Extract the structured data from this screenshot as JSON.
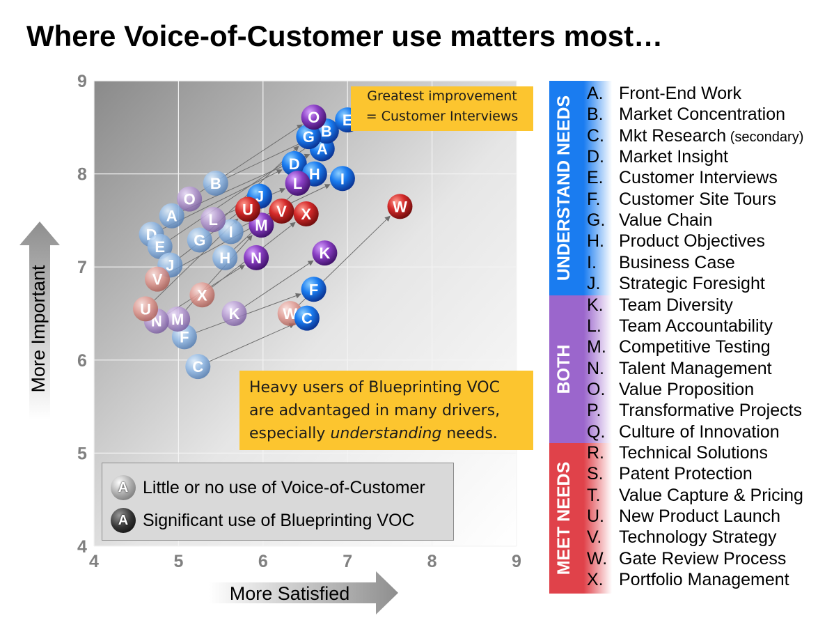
{
  "title": "Where Voice-of-Customer use matters most…",
  "chart_data": {
    "type": "scatter",
    "xlabel": "More Satisfied",
    "ylabel": "More Important",
    "xlim": [
      4,
      9
    ],
    "ylim": [
      4,
      9
    ],
    "x_ticks": [
      "4",
      "5",
      "6",
      "7",
      "8",
      "9"
    ],
    "y_ticks": [
      "4",
      "5",
      "6",
      "7",
      "8",
      "9"
    ],
    "grid": true,
    "series": [
      {
        "name": "Little or no use of Voice-of-Customer",
        "points": [
          {
            "label": "A",
            "x": 4.92,
            "y": 7.55
          },
          {
            "label": "B",
            "x": 5.44,
            "y": 7.9
          },
          {
            "label": "C",
            "x": 5.23,
            "y": 5.93
          },
          {
            "label": "D",
            "x": 4.68,
            "y": 7.35
          },
          {
            "label": "E",
            "x": 4.78,
            "y": 7.22
          },
          {
            "label": "F",
            "x": 5.07,
            "y": 6.25
          },
          {
            "label": "G",
            "x": 5.25,
            "y": 7.29
          },
          {
            "label": "H",
            "x": 5.55,
            "y": 7.1
          },
          {
            "label": "I",
            "x": 5.62,
            "y": 7.38
          },
          {
            "label": "J",
            "x": 4.9,
            "y": 7.02
          },
          {
            "label": "K",
            "x": 5.66,
            "y": 6.5
          },
          {
            "label": "L",
            "x": 5.41,
            "y": 7.51
          },
          {
            "label": "M",
            "x": 4.99,
            "y": 6.44
          },
          {
            "label": "N",
            "x": 4.74,
            "y": 6.42
          },
          {
            "label": "O",
            "x": 5.13,
            "y": 7.73
          },
          {
            "label": "U",
            "x": 4.61,
            "y": 6.55
          },
          {
            "label": "V",
            "x": 4.75,
            "y": 6.87
          },
          {
            "label": "W",
            "x": 6.32,
            "y": 6.5
          },
          {
            "label": "X",
            "x": 5.28,
            "y": 6.7
          }
        ]
      },
      {
        "name": "Significant use of Blueprinting VOC",
        "points": [
          {
            "label": "A",
            "x": 6.7,
            "y": 8.27
          },
          {
            "label": "B",
            "x": 6.75,
            "y": 8.46
          },
          {
            "label": "C",
            "x": 6.52,
            "y": 6.45
          },
          {
            "label": "D",
            "x": 6.37,
            "y": 8.11
          },
          {
            "label": "E",
            "x": 7.0,
            "y": 8.58
          },
          {
            "label": "F",
            "x": 6.6,
            "y": 6.76
          },
          {
            "label": "G",
            "x": 6.54,
            "y": 8.4
          },
          {
            "label": "H",
            "x": 6.61,
            "y": 8.0
          },
          {
            "label": "I",
            "x": 6.94,
            "y": 7.95
          },
          {
            "label": "J",
            "x": 5.96,
            "y": 7.76
          },
          {
            "label": "K",
            "x": 6.73,
            "y": 7.15
          },
          {
            "label": "L",
            "x": 6.41,
            "y": 7.9
          },
          {
            "label": "M",
            "x": 5.98,
            "y": 7.45
          },
          {
            "label": "N",
            "x": 5.92,
            "y": 7.1
          },
          {
            "label": "O",
            "x": 6.6,
            "y": 8.61
          },
          {
            "label": "U",
            "x": 5.82,
            "y": 7.62
          },
          {
            "label": "V",
            "x": 6.22,
            "y": 7.6
          },
          {
            "label": "W",
            "x": 7.62,
            "y": 7.65
          },
          {
            "label": "X",
            "x": 6.51,
            "y": 7.57
          }
        ]
      }
    ],
    "legend_position": "bottom-left"
  },
  "callouts": {
    "top": [
      "Greatest improvement",
      "= Customer Interviews"
    ],
    "bottom_line1": "Heavy users of Blueprinting VOC",
    "bottom_line2": "are advantaged in many drivers,",
    "bottom_line3_pre": "especially ",
    "bottom_line3_em": "understanding",
    "bottom_line3_post": " needs."
  },
  "legend": {
    "marker_letter": "A",
    "low_label": "Little or no use of Voice-of-Customer",
    "high_label": "Significant use of Blueprinting VOC"
  },
  "groups": [
    {
      "label": "UNDERSTAND NEEDS",
      "color": "#1a7cf0",
      "letters": [
        "A",
        "B",
        "C",
        "D",
        "E",
        "F",
        "G",
        "H",
        "I",
        "J"
      ]
    },
    {
      "label": "BOTH",
      "color": "#9b66cc",
      "letters": [
        "K",
        "L",
        "M",
        "N",
        "O",
        "P",
        "Q"
      ]
    },
    {
      "label": "MEET NEEDS",
      "color": "#e0424a",
      "letters": [
        "R",
        "S",
        "T",
        "U",
        "V",
        "W",
        "X"
      ]
    }
  ],
  "driver_list": [
    {
      "letter": "A.",
      "text": "Front-End Work"
    },
    {
      "letter": "B.",
      "text": "Market Concentration"
    },
    {
      "letter": "C.",
      "text": "Mkt Research",
      "note": "(secondary)"
    },
    {
      "letter": "D.",
      "text": "Market Insight"
    },
    {
      "letter": "E.",
      "text": "Customer Interviews"
    },
    {
      "letter": "F.",
      "text": "Customer Site Tours"
    },
    {
      "letter": "G.",
      "text": "Value Chain"
    },
    {
      "letter": "H.",
      "text": "Product Objectives"
    },
    {
      "letter": "I.",
      "text": "Business Case"
    },
    {
      "letter": "J.",
      "text": "Strategic Foresight"
    },
    {
      "letter": "K.",
      "text": "Team Diversity"
    },
    {
      "letter": "L.",
      "text": "Team Accountability"
    },
    {
      "letter": "M.",
      "text": "Competitive Testing"
    },
    {
      "letter": "N.",
      "text": "Talent Management"
    },
    {
      "letter": "O.",
      "text": "Value Proposition"
    },
    {
      "letter": "P.",
      "text": "Transformative Projects"
    },
    {
      "letter": "Q.",
      "text": "Culture of Innovation"
    },
    {
      "letter": "R.",
      "text": "Technical Solutions"
    },
    {
      "letter": "S.",
      "text": "Patent Protection"
    },
    {
      "letter": "T.",
      "text": "Value Capture & Pricing"
    },
    {
      "letter": "U.",
      "text": "New Product Launch"
    },
    {
      "letter": "V.",
      "text": "Technology Strategy"
    },
    {
      "letter": "W.",
      "text": "Gate Review Process"
    },
    {
      "letter": "X.",
      "text": "Portfolio Management"
    }
  ],
  "colors": {
    "understand": "#1a7cf0",
    "both": "#8a3fc4",
    "meet": "#d42a2a",
    "callout": "#fcc52f"
  }
}
